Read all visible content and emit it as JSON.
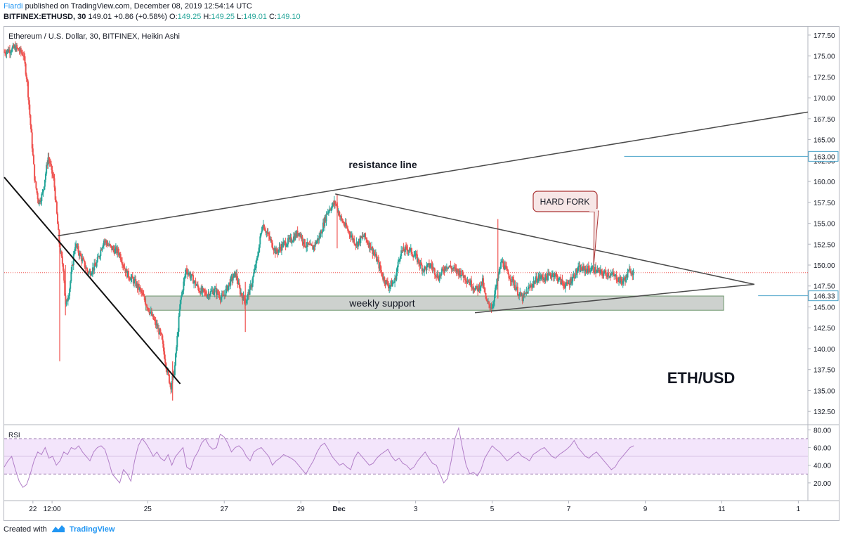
{
  "header": {
    "user": "Fiardi",
    "published": "published on TradingView.com, December 08, 2019 12:54:14 UTC",
    "symbol": "BITFINEX:ETHUSD, 30",
    "last": "149.01",
    "change": "+0.86 (+0.58%)",
    "o_label": "O:",
    "o_value": "149.25",
    "h_label": "H:",
    "h_value": "149.25",
    "l_label": "L:",
    "l_value": "149.01",
    "c_label": "C:",
    "c_value": "149.10"
  },
  "footer": {
    "created_with": "Created with",
    "brand": "TradingView"
  },
  "colors": {
    "up": "#26a69a",
    "down": "#ef5350",
    "rsi": "#b27fc8",
    "rsi_band": "#f3e5fb",
    "accent": "#2196f3",
    "support_fill": "#c8cdc9"
  },
  "chart_data": [
    {
      "type": "candlestick",
      "title": "Ethereum / U.S. Dollar, 30, BITFINEX, Heikin Ashi",
      "ylim": [
        131,
        178.5
      ],
      "y_ticks": [
        "177.50",
        "175.00",
        "172.50",
        "170.00",
        "167.50",
        "165.00",
        "162.50",
        "160.00",
        "157.50",
        "155.00",
        "152.50",
        "150.00",
        "147.50",
        "145.00",
        "142.50",
        "140.00",
        "137.50",
        "135.00",
        "132.50"
      ],
      "x_ticks": [
        {
          "label": "22",
          "day": 0.75
        },
        {
          "label": "12:00",
          "day": 1.25
        },
        {
          "label": "25",
          "day": 3.75
        },
        {
          "label": "27",
          "day": 5.75
        },
        {
          "label": "29",
          "day": 7.75
        },
        {
          "label": "Dec",
          "day": 8.75
        },
        {
          "label": "3",
          "day": 10.75
        },
        {
          "label": "5",
          "day": 12.75
        },
        {
          "label": "7",
          "day": 14.75
        },
        {
          "label": "9",
          "day": 16.75
        },
        {
          "label": "11",
          "day": 18.75
        },
        {
          "label": "1",
          "day": 20.75
        }
      ],
      "x_range_days": [
        0,
        21
      ],
      "last_day": 16.45,
      "price_path": [
        [
          0.0,
          175.5
        ],
        [
          0.3,
          176.0
        ],
        [
          0.5,
          175.2
        ],
        [
          0.6,
          172.0
        ],
        [
          0.7,
          166.0
        ],
        [
          0.8,
          160.0
        ],
        [
          0.9,
          157.5
        ],
        [
          1.0,
          158.5
        ],
        [
          1.15,
          163.0
        ],
        [
          1.3,
          160.0
        ],
        [
          1.45,
          152.0
        ],
        [
          1.55,
          149.5
        ],
        [
          1.6,
          145.0
        ],
        [
          1.7,
          147.0
        ],
        [
          1.85,
          152.5
        ],
        [
          2.0,
          151.0
        ],
        [
          2.2,
          149.0
        ],
        [
          2.4,
          150.0
        ],
        [
          2.6,
          153.0
        ],
        [
          2.8,
          152.0
        ],
        [
          3.0,
          151.5
        ],
        [
          3.2,
          149.0
        ],
        [
          3.4,
          148.0
        ],
        [
          3.55,
          147.0
        ],
        [
          3.7,
          145.5
        ],
        [
          3.9,
          143.5
        ],
        [
          4.1,
          141.5
        ],
        [
          4.25,
          137.5
        ],
        [
          4.35,
          135.5
        ],
        [
          4.45,
          137.5
        ],
        [
          4.6,
          145.5
        ],
        [
          4.75,
          149.5
        ],
        [
          4.9,
          148.5
        ],
        [
          5.1,
          147.0
        ],
        [
          5.3,
          146.5
        ],
        [
          5.5,
          147.0
        ],
        [
          5.7,
          146.0
        ],
        [
          5.9,
          148.0
        ],
        [
          6.05,
          149.0
        ],
        [
          6.15,
          147.0
        ],
        [
          6.3,
          145.5
        ],
        [
          6.45,
          147.5
        ],
        [
          6.6,
          150.5
        ],
        [
          6.75,
          155.0
        ],
        [
          6.9,
          153.5
        ],
        [
          7.1,
          151.5
        ],
        [
          7.3,
          152.5
        ],
        [
          7.5,
          153.0
        ],
        [
          7.7,
          154.0
        ],
        [
          7.85,
          152.5
        ],
        [
          8.05,
          152.0
        ],
        [
          8.25,
          153.5
        ],
        [
          8.45,
          156.5
        ],
        [
          8.65,
          157.5
        ],
        [
          8.8,
          155.5
        ],
        [
          9.0,
          154.0
        ],
        [
          9.2,
          152.5
        ],
        [
          9.4,
          153.5
        ],
        [
          9.6,
          152.0
        ],
        [
          9.75,
          150.5
        ],
        [
          9.9,
          148.5
        ],
        [
          10.05,
          147.5
        ],
        [
          10.2,
          148.0
        ],
        [
          10.35,
          151.5
        ],
        [
          10.55,
          152.0
        ],
        [
          10.75,
          151.0
        ],
        [
          10.95,
          149.5
        ],
        [
          11.15,
          150.0
        ],
        [
          11.35,
          148.5
        ],
        [
          11.55,
          150.0
        ],
        [
          11.75,
          149.5
        ],
        [
          11.95,
          149.0
        ],
        [
          12.15,
          148.0
        ],
        [
          12.35,
          147.0
        ],
        [
          12.5,
          148.0
        ],
        [
          12.6,
          145.5
        ],
        [
          12.75,
          145.0
        ],
        [
          12.9,
          148.5
        ],
        [
          13.0,
          150.5
        ],
        [
          13.15,
          149.0
        ],
        [
          13.3,
          148.0
        ],
        [
          13.45,
          146.5
        ],
        [
          13.55,
          146.0
        ],
        [
          13.75,
          147.5
        ],
        [
          13.95,
          148.5
        ],
        [
          14.15,
          148.5
        ],
        [
          14.35,
          149.0
        ],
        [
          14.55,
          148.0
        ],
        [
          14.7,
          147.5
        ],
        [
          14.85,
          148.5
        ],
        [
          15.0,
          149.5
        ],
        [
          15.2,
          149.5
        ],
        [
          15.4,
          149.5
        ],
        [
          15.6,
          149.0
        ],
        [
          15.8,
          149.0
        ],
        [
          16.0,
          148.5
        ],
        [
          16.15,
          148.0
        ],
        [
          16.25,
          148.5
        ],
        [
          16.35,
          149.5
        ],
        [
          16.45,
          149.1
        ]
      ],
      "wicks": [
        {
          "day": 1.45,
          "low": 138.5,
          "high": 152.5
        },
        {
          "day": 1.6,
          "low": 144.0,
          "high": 150.0
        },
        {
          "day": 4.4,
          "low": 133.8,
          "high": 138.5
        },
        {
          "day": 6.3,
          "low": 142.0,
          "high": 148.0
        },
        {
          "day": 12.9,
          "low": 146.0,
          "high": 155.5
        },
        {
          "day": 8.7,
          "low": 152.0,
          "high": 158.5
        }
      ],
      "current_price": 149.1,
      "price_lines": [
        {
          "label": "163.00",
          "value": 163.0,
          "from_day": 16.2
        },
        {
          "label": "146.33",
          "value": 146.33,
          "from_day": 19.7
        }
      ],
      "annotations": {
        "resistance_label": "resistance line",
        "resistance_line": [
          [
            1.4,
            153.5
          ],
          [
            21.0,
            168.3
          ]
        ],
        "triangle_upper": [
          [
            8.65,
            158.5
          ],
          [
            19.6,
            147.7
          ]
        ],
        "triangle_lower": [
          [
            12.3,
            144.3
          ],
          [
            19.6,
            147.7
          ]
        ],
        "downtrend_line": [
          [
            0.0,
            160.5
          ],
          [
            4.6,
            135.8
          ]
        ],
        "support_label": "weekly support",
        "support_zone": {
          "from_day": 3.7,
          "to_day": 18.8,
          "low": 144.6,
          "high": 146.3
        },
        "hard_fork_label": "HARD FORK",
        "hard_fork_arrow": {
          "day": 15.4,
          "value": 149.8
        },
        "big_label": "ETH/USD"
      }
    },
    {
      "type": "line",
      "title": "RSI",
      "ylim": [
        0,
        85
      ],
      "y_ticks": [
        "80.00",
        "60.00",
        "40.00",
        "20.00"
      ],
      "band": [
        30,
        70
      ],
      "mid": 50,
      "values": [
        38,
        45,
        50,
        35,
        22,
        15,
        18,
        30,
        45,
        55,
        52,
        60,
        48,
        50,
        40,
        45,
        55,
        52,
        60,
        58,
        62,
        55,
        50,
        45,
        55,
        60,
        62,
        58,
        45,
        30,
        25,
        20,
        35,
        30,
        22,
        45,
        62,
        70,
        65,
        58,
        50,
        55,
        48,
        45,
        52,
        40,
        50,
        55,
        60,
        38,
        35,
        48,
        55,
        65,
        70,
        62,
        58,
        60,
        75,
        72,
        65,
        55,
        60,
        62,
        58,
        50,
        45,
        55,
        58,
        60,
        55,
        50,
        40,
        45,
        48,
        52,
        50,
        48,
        45,
        40,
        35,
        30,
        38,
        45,
        55,
        62,
        65,
        58,
        50,
        45,
        40,
        42,
        38,
        35,
        48,
        55,
        50,
        45,
        40,
        42,
        48,
        52,
        55,
        58,
        50,
        45,
        48,
        42,
        40,
        35,
        38,
        45,
        50,
        55,
        48,
        42,
        40,
        30,
        20,
        25,
        45,
        70,
        82,
        60,
        40,
        30,
        32,
        28,
        35,
        48,
        55,
        62,
        58,
        55,
        50,
        45,
        48,
        52,
        55,
        50,
        48,
        45,
        52,
        55,
        58,
        60,
        55,
        50,
        48,
        52,
        55,
        58,
        62,
        68,
        60,
        55,
        50,
        48,
        52,
        55,
        50,
        45,
        40,
        35,
        38,
        45,
        50,
        55,
        60,
        62
      ]
    }
  ]
}
